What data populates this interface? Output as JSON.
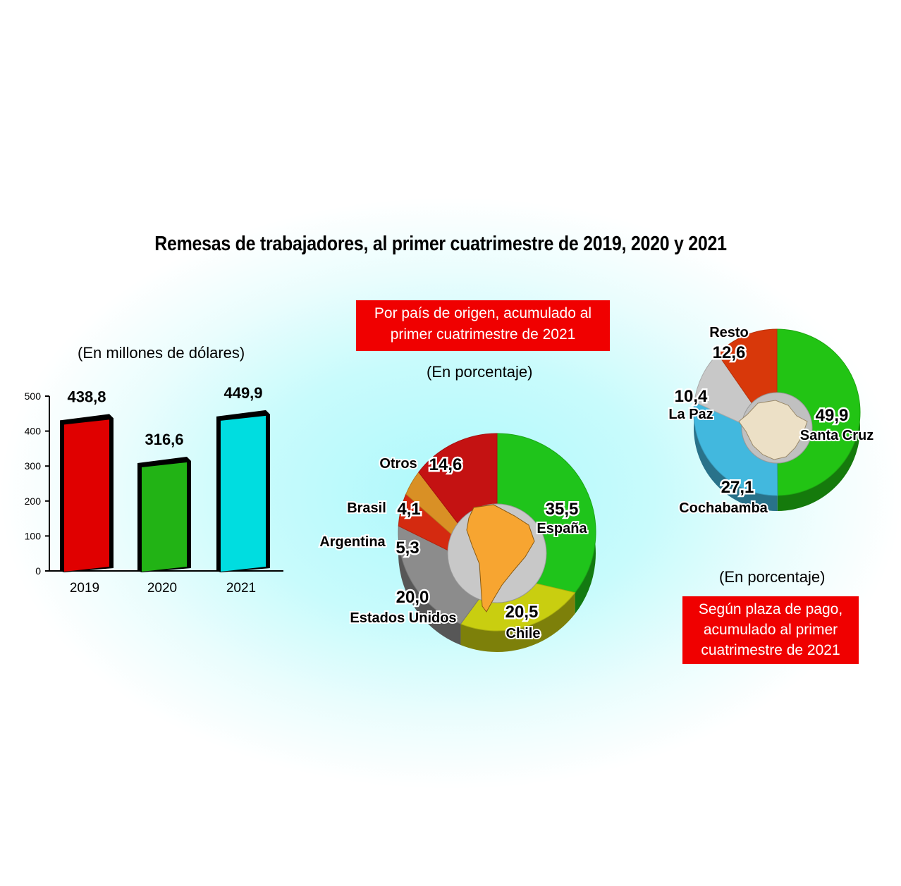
{
  "title": "Remesas de trabajadores, al primer cuatrimestre de 2019, 2020 y 2021",
  "bar_panel": {
    "unit": "(En millones de dólares)"
  },
  "country_panel": {
    "box_text": [
      "Por país de origen, acumulado al",
      "primer cuatrimestre de 2021"
    ],
    "unit": "(En porcentaje)"
  },
  "city_panel": {
    "box_text": [
      "Según plaza de pago,",
      "acumulado al primer",
      "cuatrimestre de 2021"
    ],
    "unit": "(En porcentaje)"
  },
  "chart_data": [
    {
      "type": "bar",
      "categories": [
        "2019",
        "2020",
        "2021"
      ],
      "values": [
        438.8,
        316.6,
        449.9
      ],
      "value_labels": [
        "438,8",
        "316,6",
        "449,9"
      ],
      "colors": [
        "#e00000",
        "#22b315",
        "#00dde0"
      ],
      "ylim": [
        0,
        500
      ],
      "yticks": [
        "0",
        "100",
        "200",
        "300",
        "400",
        "500"
      ]
    },
    {
      "type": "pie",
      "slices": [
        {
          "label": "España",
          "value": 35.5,
          "display": "35,5",
          "color": "#1fc41b"
        },
        {
          "label": "Chile",
          "value": 20.5,
          "display": "20,5",
          "color": "#c9ce10"
        },
        {
          "label": "Estados Unidos",
          "value": 20.0,
          "display": "20,0",
          "color": "#8c8c8c"
        },
        {
          "label": "Argentina",
          "value": 5.3,
          "display": "5,3",
          "color": "#d42a10"
        },
        {
          "label": "Brasil",
          "value": 4.1,
          "display": "4,1",
          "color": "#d99025"
        },
        {
          "label": "Otros",
          "value": 14.6,
          "display": "14,6",
          "color": "#c41212"
        }
      ]
    },
    {
      "type": "pie",
      "slices": [
        {
          "label": "Santa Cruz",
          "value": 49.9,
          "display": "49,9",
          "color": "#22c414"
        },
        {
          "label": "Cochabamba",
          "value": 27.1,
          "display": "27,1",
          "color": "#42b8de"
        },
        {
          "label": "La Paz",
          "value": 10.4,
          "display": "10,4",
          "color": "#c8c8c8"
        },
        {
          "label": "Resto",
          "value": 12.6,
          "display": "12,6",
          "color": "#d8380a"
        }
      ]
    }
  ]
}
